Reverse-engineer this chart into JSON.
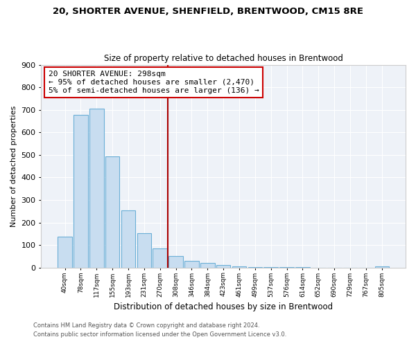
{
  "title": "20, SHORTER AVENUE, SHENFIELD, BRENTWOOD, CM15 8RE",
  "subtitle": "Size of property relative to detached houses in Brentwood",
  "xlabel": "Distribution of detached houses by size in Brentwood",
  "ylabel": "Number of detached properties",
  "bar_color": "#c8ddf0",
  "bar_edge_color": "#6aaed6",
  "categories": [
    "40sqm",
    "78sqm",
    "117sqm",
    "155sqm",
    "193sqm",
    "231sqm",
    "270sqm",
    "308sqm",
    "346sqm",
    "384sqm",
    "423sqm",
    "461sqm",
    "499sqm",
    "537sqm",
    "576sqm",
    "614sqm",
    "652sqm",
    "690sqm",
    "729sqm",
    "767sqm",
    "805sqm"
  ],
  "values": [
    138,
    678,
    706,
    493,
    253,
    154,
    86,
    50,
    30,
    20,
    11,
    4,
    1,
    1,
    1,
    1,
    0,
    0,
    0,
    0,
    5
  ],
  "property_line_color": "#aa0000",
  "annotation_title": "20 SHORTER AVENUE: 298sqm",
  "annotation_line1": "← 95% of detached houses are smaller (2,470)",
  "annotation_line2": "5% of semi-detached houses are larger (136) →",
  "annotation_box_color": "#ffffff",
  "annotation_box_edge": "#cc0000",
  "ylim": [
    0,
    900
  ],
  "yticks": [
    0,
    100,
    200,
    300,
    400,
    500,
    600,
    700,
    800,
    900
  ],
  "footer1": "Contains HM Land Registry data © Crown copyright and database right 2024.",
  "footer2": "Contains public sector information licensed under the Open Government Licence v3.0.",
  "bg_color": "#ffffff",
  "plot_bg_color": "#eef2f8",
  "grid_color": "#ffffff"
}
